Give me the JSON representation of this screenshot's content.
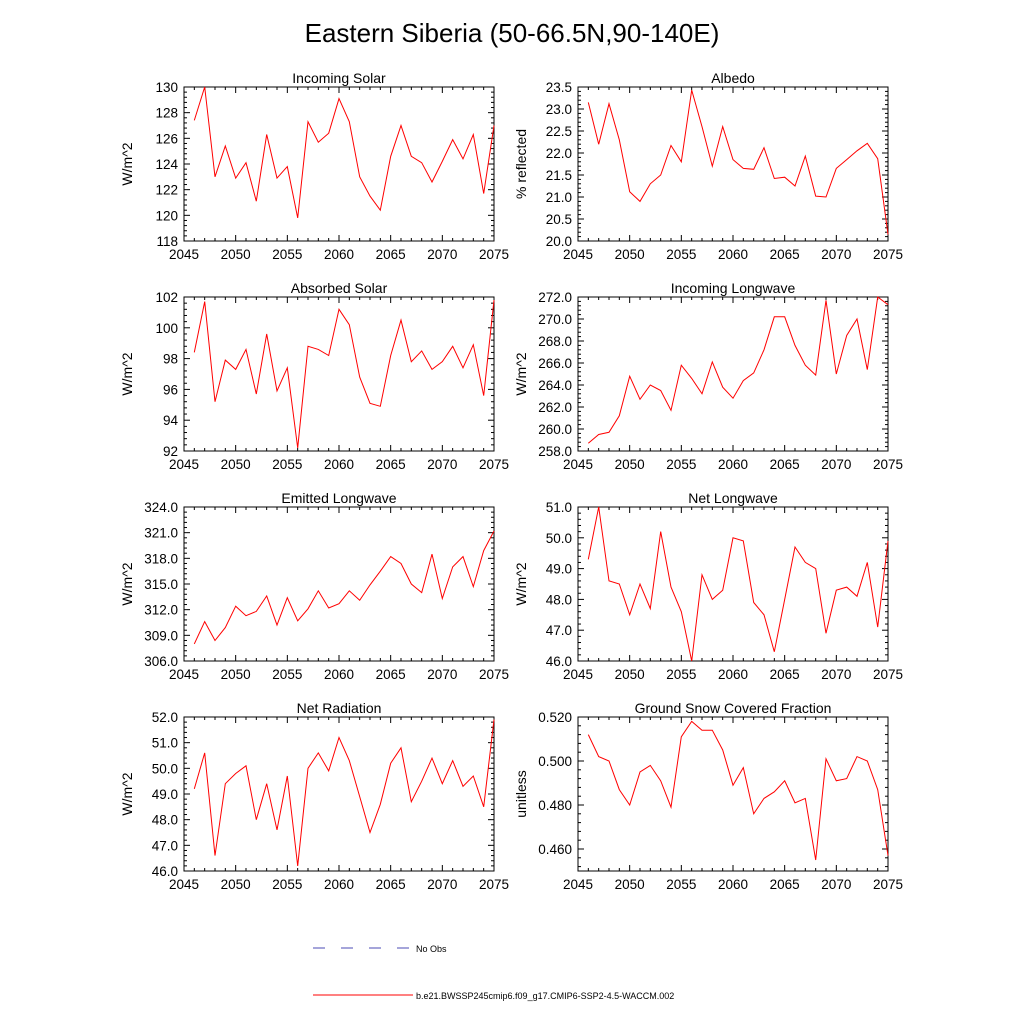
{
  "title": "Eastern Siberia (50-66.5N,90-140E)",
  "colors": {
    "series": "#ff0000",
    "no_obs": "#4b4bb4",
    "axis": "#000000"
  },
  "legend": {
    "no_obs_label": "No Obs",
    "model_label": "b.e21.BWSSP245cmip6.f09_g17.CMIP6-SSP2-4.5-WACCM.002"
  },
  "chart_data": [
    {
      "id": "incoming-solar",
      "type": "line",
      "title": "Incoming Solar",
      "xlabel": "",
      "ylabel": "W/m^2",
      "xlim": [
        2045,
        2075
      ],
      "ylim": [
        118,
        130
      ],
      "xticks": [
        2045,
        2050,
        2055,
        2060,
        2065,
        2070,
        2075
      ],
      "yticks": [
        118,
        120,
        122,
        124,
        126,
        128,
        130
      ],
      "ytick_labels": [
        "118",
        "120",
        "122",
        "124",
        "126",
        "128",
        "130"
      ],
      "x": [
        2046,
        2047,
        2048,
        2049,
        2050,
        2051,
        2052,
        2053,
        2054,
        2055,
        2056,
        2057,
        2058,
        2059,
        2060,
        2061,
        2062,
        2063,
        2064,
        2065,
        2066,
        2067,
        2068,
        2069,
        2070,
        2071,
        2072,
        2073,
        2074,
        2075
      ],
      "values": [
        127.4,
        130.0,
        123.0,
        125.4,
        122.9,
        124.1,
        121.1,
        126.3,
        122.9,
        123.8,
        119.8,
        127.3,
        125.7,
        126.4,
        129.1,
        127.3,
        123.0,
        121.5,
        120.4,
        124.6,
        127.0,
        124.6,
        124.1,
        122.6,
        124.2,
        125.9,
        124.4,
        126.3,
        121.7,
        127.0
      ]
    },
    {
      "id": "albedo",
      "type": "line",
      "title": "Albedo",
      "xlabel": "",
      "ylabel": "% reflected",
      "xlim": [
        2045,
        2075
      ],
      "ylim": [
        20.0,
        23.5
      ],
      "xticks": [
        2045,
        2050,
        2055,
        2060,
        2065,
        2070,
        2075
      ],
      "yticks": [
        20.0,
        20.5,
        21.0,
        21.5,
        22.0,
        22.5,
        23.0,
        23.5
      ],
      "ytick_labels": [
        "20.0",
        "20.5",
        "21.0",
        "21.5",
        "22.0",
        "22.5",
        "23.0",
        "23.5"
      ],
      "x": [
        2046,
        2047,
        2048,
        2049,
        2050,
        2051,
        2052,
        2053,
        2054,
        2055,
        2056,
        2057,
        2058,
        2059,
        2060,
        2061,
        2062,
        2063,
        2064,
        2065,
        2066,
        2067,
        2068,
        2069,
        2070,
        2071,
        2072,
        2073,
        2074,
        2075
      ],
      "values": [
        23.15,
        22.2,
        23.12,
        22.3,
        21.12,
        20.9,
        21.3,
        21.5,
        22.17,
        21.8,
        23.43,
        22.6,
        21.7,
        22.6,
        21.85,
        21.65,
        21.63,
        22.12,
        21.42,
        21.45,
        21.25,
        21.93,
        21.02,
        21.0,
        21.65,
        21.85,
        22.05,
        22.22,
        21.87,
        20.15
      ]
    },
    {
      "id": "absorbed-solar",
      "type": "line",
      "title": "Absorbed Solar",
      "xlabel": "",
      "ylabel": "W/m^2",
      "xlim": [
        2045,
        2075
      ],
      "ylim": [
        92,
        102
      ],
      "xticks": [
        2045,
        2050,
        2055,
        2060,
        2065,
        2070,
        2075
      ],
      "yticks": [
        92,
        94,
        96,
        98,
        100,
        102
      ],
      "ytick_labels": [
        "92",
        "94",
        "96",
        "98",
        "100",
        "102"
      ],
      "x": [
        2046,
        2047,
        2048,
        2049,
        2050,
        2051,
        2052,
        2053,
        2054,
        2055,
        2056,
        2057,
        2058,
        2059,
        2060,
        2061,
        2062,
        2063,
        2064,
        2065,
        2066,
        2067,
        2068,
        2069,
        2070,
        2071,
        2072,
        2073,
        2074,
        2075
      ],
      "values": [
        98.4,
        101.7,
        95.2,
        97.9,
        97.3,
        98.6,
        95.7,
        99.6,
        95.9,
        97.4,
        92.2,
        98.8,
        98.6,
        98.2,
        101.2,
        100.2,
        96.8,
        95.1,
        94.9,
        98.2,
        100.5,
        97.8,
        98.5,
        97.3,
        97.8,
        98.8,
        97.4,
        98.9,
        95.6,
        101.8
      ]
    },
    {
      "id": "incoming-longwave",
      "type": "line",
      "title": "Incoming Longwave",
      "xlabel": "",
      "ylabel": "W/m^2",
      "xlim": [
        2045,
        2075
      ],
      "ylim": [
        258.0,
        272.0
      ],
      "xticks": [
        2045,
        2050,
        2055,
        2060,
        2065,
        2070,
        2075
      ],
      "yticks": [
        258.0,
        260.0,
        262.0,
        264.0,
        266.0,
        268.0,
        270.0,
        272.0
      ],
      "ytick_labels": [
        "258.0",
        "260.0",
        "262.0",
        "264.0",
        "266.0",
        "268.0",
        "270.0",
        "272.0"
      ],
      "x": [
        2046,
        2047,
        2048,
        2049,
        2050,
        2051,
        2052,
        2053,
        2054,
        2055,
        2056,
        2057,
        2058,
        2059,
        2060,
        2061,
        2062,
        2063,
        2064,
        2065,
        2066,
        2067,
        2068,
        2069,
        2070,
        2071,
        2072,
        2073,
        2074,
        2075
      ],
      "values": [
        258.7,
        259.5,
        259.7,
        261.2,
        264.8,
        262.7,
        264.0,
        263.5,
        261.7,
        265.8,
        264.6,
        263.2,
        266.1,
        263.8,
        262.8,
        264.4,
        265.1,
        267.2,
        270.2,
        270.2,
        267.6,
        265.8,
        264.9,
        271.7,
        265.0,
        268.5,
        270.0,
        265.4,
        272.0,
        271.3
      ]
    },
    {
      "id": "emitted-longwave",
      "type": "line",
      "title": "Emitted Longwave",
      "xlabel": "",
      "ylabel": "W/m^2",
      "xlim": [
        2045,
        2075
      ],
      "ylim": [
        306.0,
        324.0
      ],
      "xticks": [
        2045,
        2050,
        2055,
        2060,
        2065,
        2070,
        2075
      ],
      "yticks": [
        306.0,
        309.0,
        312.0,
        315.0,
        318.0,
        321.0,
        324.0
      ],
      "ytick_labels": [
        "306.0",
        "309.0",
        "312.0",
        "315.0",
        "318.0",
        "321.0",
        "324.0"
      ],
      "x": [
        2046,
        2047,
        2048,
        2049,
        2050,
        2051,
        2052,
        2053,
        2054,
        2055,
        2056,
        2057,
        2058,
        2059,
        2060,
        2061,
        2062,
        2063,
        2064,
        2065,
        2066,
        2067,
        2068,
        2069,
        2070,
        2071,
        2072,
        2073,
        2074,
        2075
      ],
      "values": [
        308.0,
        310.6,
        308.4,
        309.9,
        312.4,
        311.3,
        311.8,
        313.6,
        310.2,
        313.4,
        310.7,
        312.1,
        314.2,
        312.2,
        312.7,
        314.2,
        313.1,
        314.9,
        316.5,
        318.2,
        317.4,
        315.0,
        314.0,
        318.5,
        313.3,
        317.0,
        318.2,
        314.7,
        318.9,
        321.2
      ]
    },
    {
      "id": "net-longwave",
      "type": "line",
      "title": "Net Longwave",
      "xlabel": "",
      "ylabel": "W/m^2",
      "xlim": [
        2045,
        2075
      ],
      "ylim": [
        46.0,
        51.0
      ],
      "xticks": [
        2045,
        2050,
        2055,
        2060,
        2065,
        2070,
        2075
      ],
      "yticks": [
        46.0,
        47.0,
        48.0,
        49.0,
        50.0,
        51.0
      ],
      "ytick_labels": [
        "46.0",
        "47.0",
        "48.0",
        "49.0",
        "50.0",
        "51.0"
      ],
      "x": [
        2046,
        2047,
        2048,
        2049,
        2050,
        2051,
        2052,
        2053,
        2054,
        2055,
        2056,
        2057,
        2058,
        2059,
        2060,
        2061,
        2062,
        2063,
        2064,
        2065,
        2066,
        2067,
        2068,
        2069,
        2070,
        2071,
        2072,
        2073,
        2074,
        2075
      ],
      "values": [
        49.3,
        51.0,
        48.6,
        48.5,
        47.5,
        48.5,
        47.7,
        50.2,
        48.4,
        47.6,
        46.0,
        48.8,
        48.0,
        48.3,
        50.0,
        49.9,
        47.9,
        47.5,
        46.3,
        48.0,
        49.7,
        49.2,
        49.0,
        46.9,
        48.3,
        48.4,
        48.1,
        49.2,
        47.1,
        49.9
      ]
    },
    {
      "id": "net-radiation",
      "type": "line",
      "title": "Net Radiation",
      "xlabel": "",
      "ylabel": "W/m^2",
      "xlim": [
        2045,
        2075
      ],
      "ylim": [
        46.0,
        52.0
      ],
      "xticks": [
        2045,
        2050,
        2055,
        2060,
        2065,
        2070,
        2075
      ],
      "yticks": [
        46.0,
        47.0,
        48.0,
        49.0,
        50.0,
        51.0,
        52.0
      ],
      "ytick_labels": [
        "46.0",
        "47.0",
        "48.0",
        "49.0",
        "50.0",
        "51.0",
        "52.0"
      ],
      "x": [
        2046,
        2047,
        2048,
        2049,
        2050,
        2051,
        2052,
        2053,
        2054,
        2055,
        2056,
        2057,
        2058,
        2059,
        2060,
        2061,
        2062,
        2063,
        2064,
        2065,
        2066,
        2067,
        2068,
        2069,
        2070,
        2071,
        2072,
        2073,
        2074,
        2075
      ],
      "values": [
        49.2,
        50.6,
        46.6,
        49.4,
        49.8,
        50.1,
        48.0,
        49.4,
        47.6,
        49.7,
        46.2,
        50.0,
        50.6,
        49.9,
        51.2,
        50.3,
        48.9,
        47.5,
        48.6,
        50.2,
        50.8,
        48.7,
        49.5,
        50.4,
        49.4,
        50.3,
        49.3,
        49.7,
        48.5,
        51.9
      ]
    },
    {
      "id": "ground-snow-covered-fraction",
      "type": "line",
      "title": "Ground Snow Covered Fraction",
      "xlabel": "",
      "ylabel": "unitless",
      "xlim": [
        2045,
        2075
      ],
      "ylim": [
        0.45,
        0.52
      ],
      "xticks": [
        2045,
        2050,
        2055,
        2060,
        2065,
        2070,
        2075
      ],
      "yticks": [
        0.46,
        0.48,
        0.5,
        0.52
      ],
      "ytick_labels": [
        "0.460",
        "0.480",
        "0.500",
        "0.520"
      ],
      "x": [
        2046,
        2047,
        2048,
        2049,
        2050,
        2051,
        2052,
        2053,
        2054,
        2055,
        2056,
        2057,
        2058,
        2059,
        2060,
        2061,
        2062,
        2063,
        2064,
        2065,
        2066,
        2067,
        2068,
        2069,
        2070,
        2071,
        2072,
        2073,
        2074,
        2075
      ],
      "values": [
        0.512,
        0.502,
        0.5,
        0.487,
        0.48,
        0.495,
        0.498,
        0.491,
        0.479,
        0.511,
        0.518,
        0.514,
        0.514,
        0.505,
        0.489,
        0.497,
        0.476,
        0.483,
        0.486,
        0.491,
        0.481,
        0.483,
        0.455,
        0.501,
        0.491,
        0.492,
        0.502,
        0.5,
        0.487,
        0.457
      ]
    }
  ]
}
